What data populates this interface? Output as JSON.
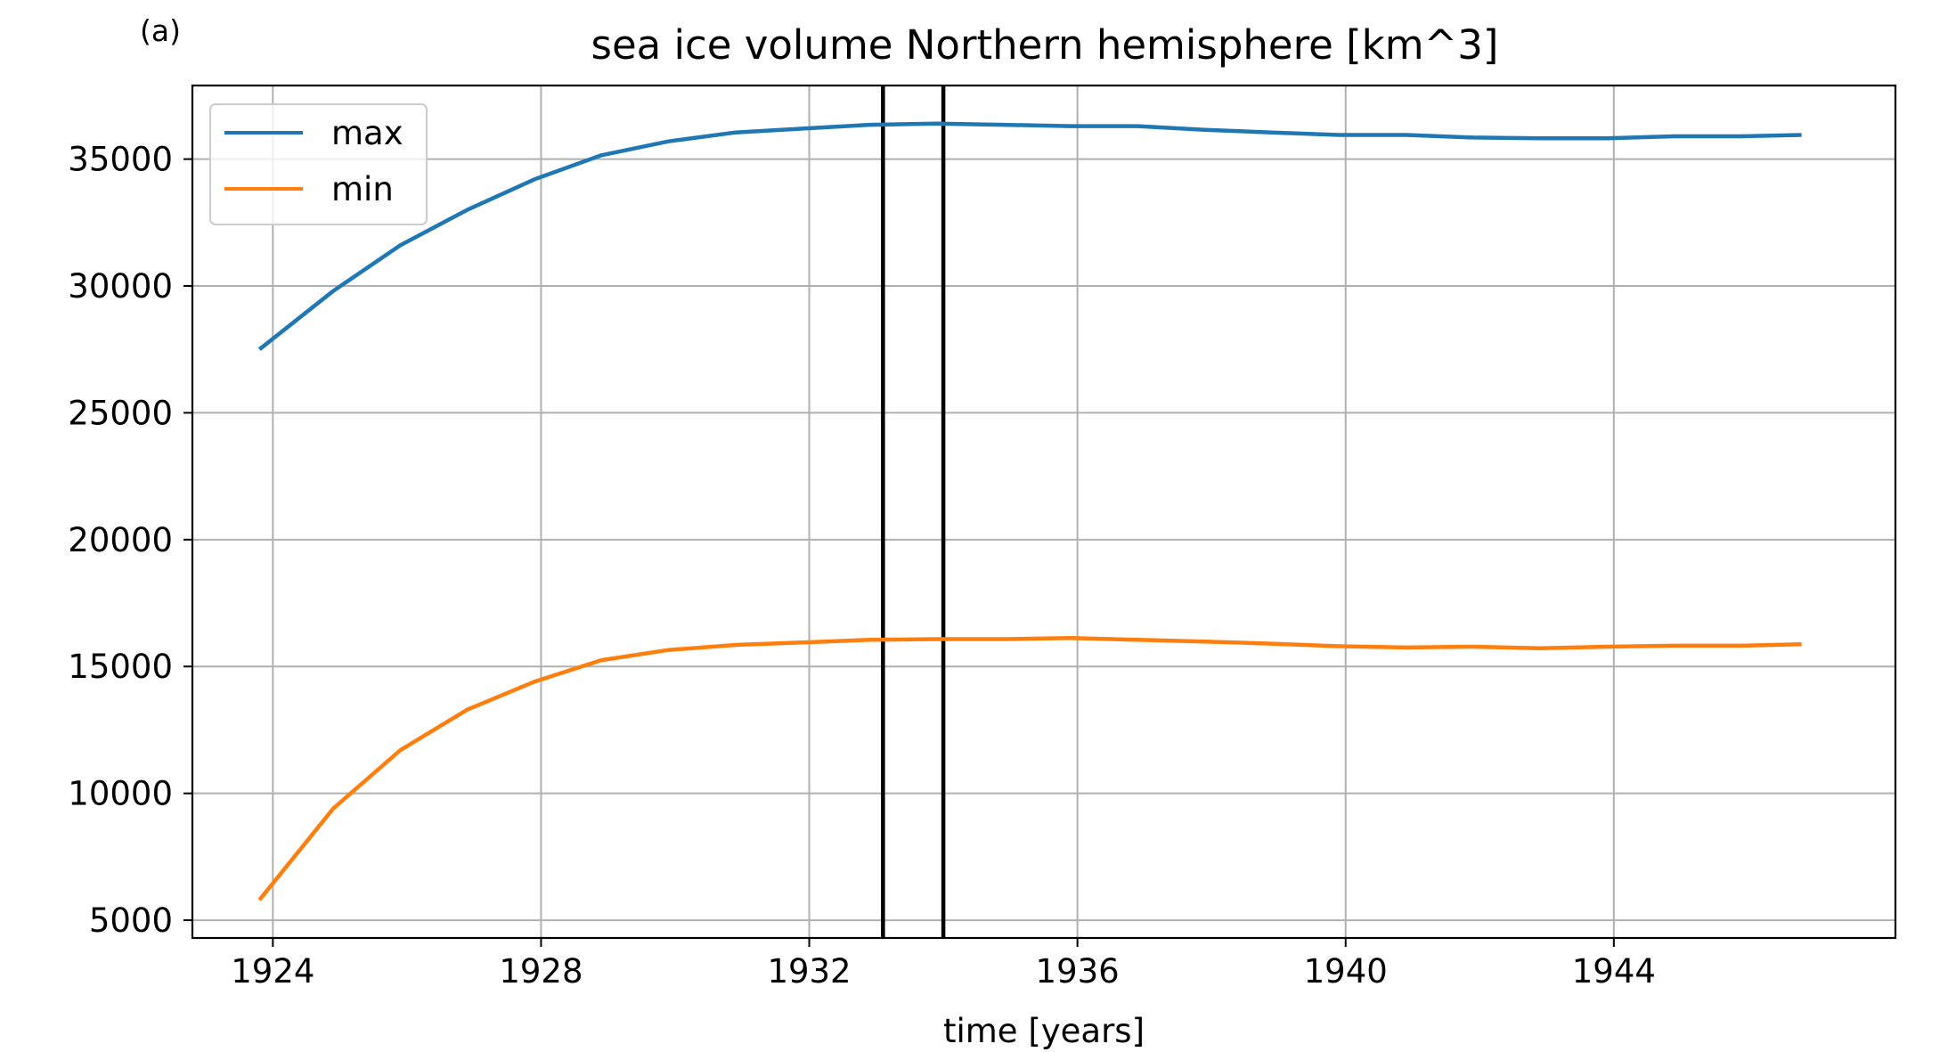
{
  "panel_label": "(a)",
  "chart_data": {
    "type": "line",
    "title": "sea ice volume Northern hemisphere [km^3]",
    "xlabel": "time [years]",
    "ylabel": "",
    "xlim": [
      1922.8,
      1948.2
    ],
    "ylim": [
      4300,
      37900
    ],
    "xticks": [
      1924,
      1928,
      1932,
      1936,
      1940,
      1944
    ],
    "yticks": [
      5000,
      10000,
      15000,
      20000,
      25000,
      30000,
      35000
    ],
    "grid": true,
    "legend_position": "upper-left",
    "vertical_lines": [
      1933.1,
      1934.0
    ],
    "series": [
      {
        "name": "max",
        "color": "#1f77b4",
        "x": [
          1923.8,
          1924.9,
          1925.9,
          1926.9,
          1927.9,
          1928.9,
          1929.9,
          1930.9,
          1931.9,
          1932.9,
          1933.9,
          1934.9,
          1935.9,
          1936.9,
          1937.9,
          1938.9,
          1939.9,
          1940.9,
          1941.9,
          1942.9,
          1943.9,
          1944.9,
          1945.9,
          1946.8
        ],
        "values": [
          27500,
          29800,
          31600,
          33000,
          34200,
          35150,
          35700,
          36050,
          36200,
          36350,
          36400,
          36350,
          36300,
          36300,
          36150,
          36050,
          35950,
          35950,
          35850,
          35820,
          35820,
          35900,
          35900,
          35950
        ]
      },
      {
        "name": "min",
        "color": "#ff7f0e",
        "x": [
          1923.8,
          1924.9,
          1925.9,
          1926.9,
          1927.9,
          1928.9,
          1929.9,
          1930.9,
          1931.9,
          1932.9,
          1933.9,
          1934.9,
          1935.9,
          1936.9,
          1937.9,
          1938.9,
          1939.9,
          1940.9,
          1941.9,
          1942.9,
          1943.9,
          1944.9,
          1945.9,
          1946.8
        ],
        "values": [
          5800,
          9400,
          11700,
          13300,
          14400,
          15250,
          15650,
          15850,
          15950,
          16050,
          16080,
          16080,
          16120,
          16050,
          15980,
          15900,
          15800,
          15750,
          15780,
          15720,
          15780,
          15820,
          15820,
          15880
        ]
      }
    ]
  }
}
